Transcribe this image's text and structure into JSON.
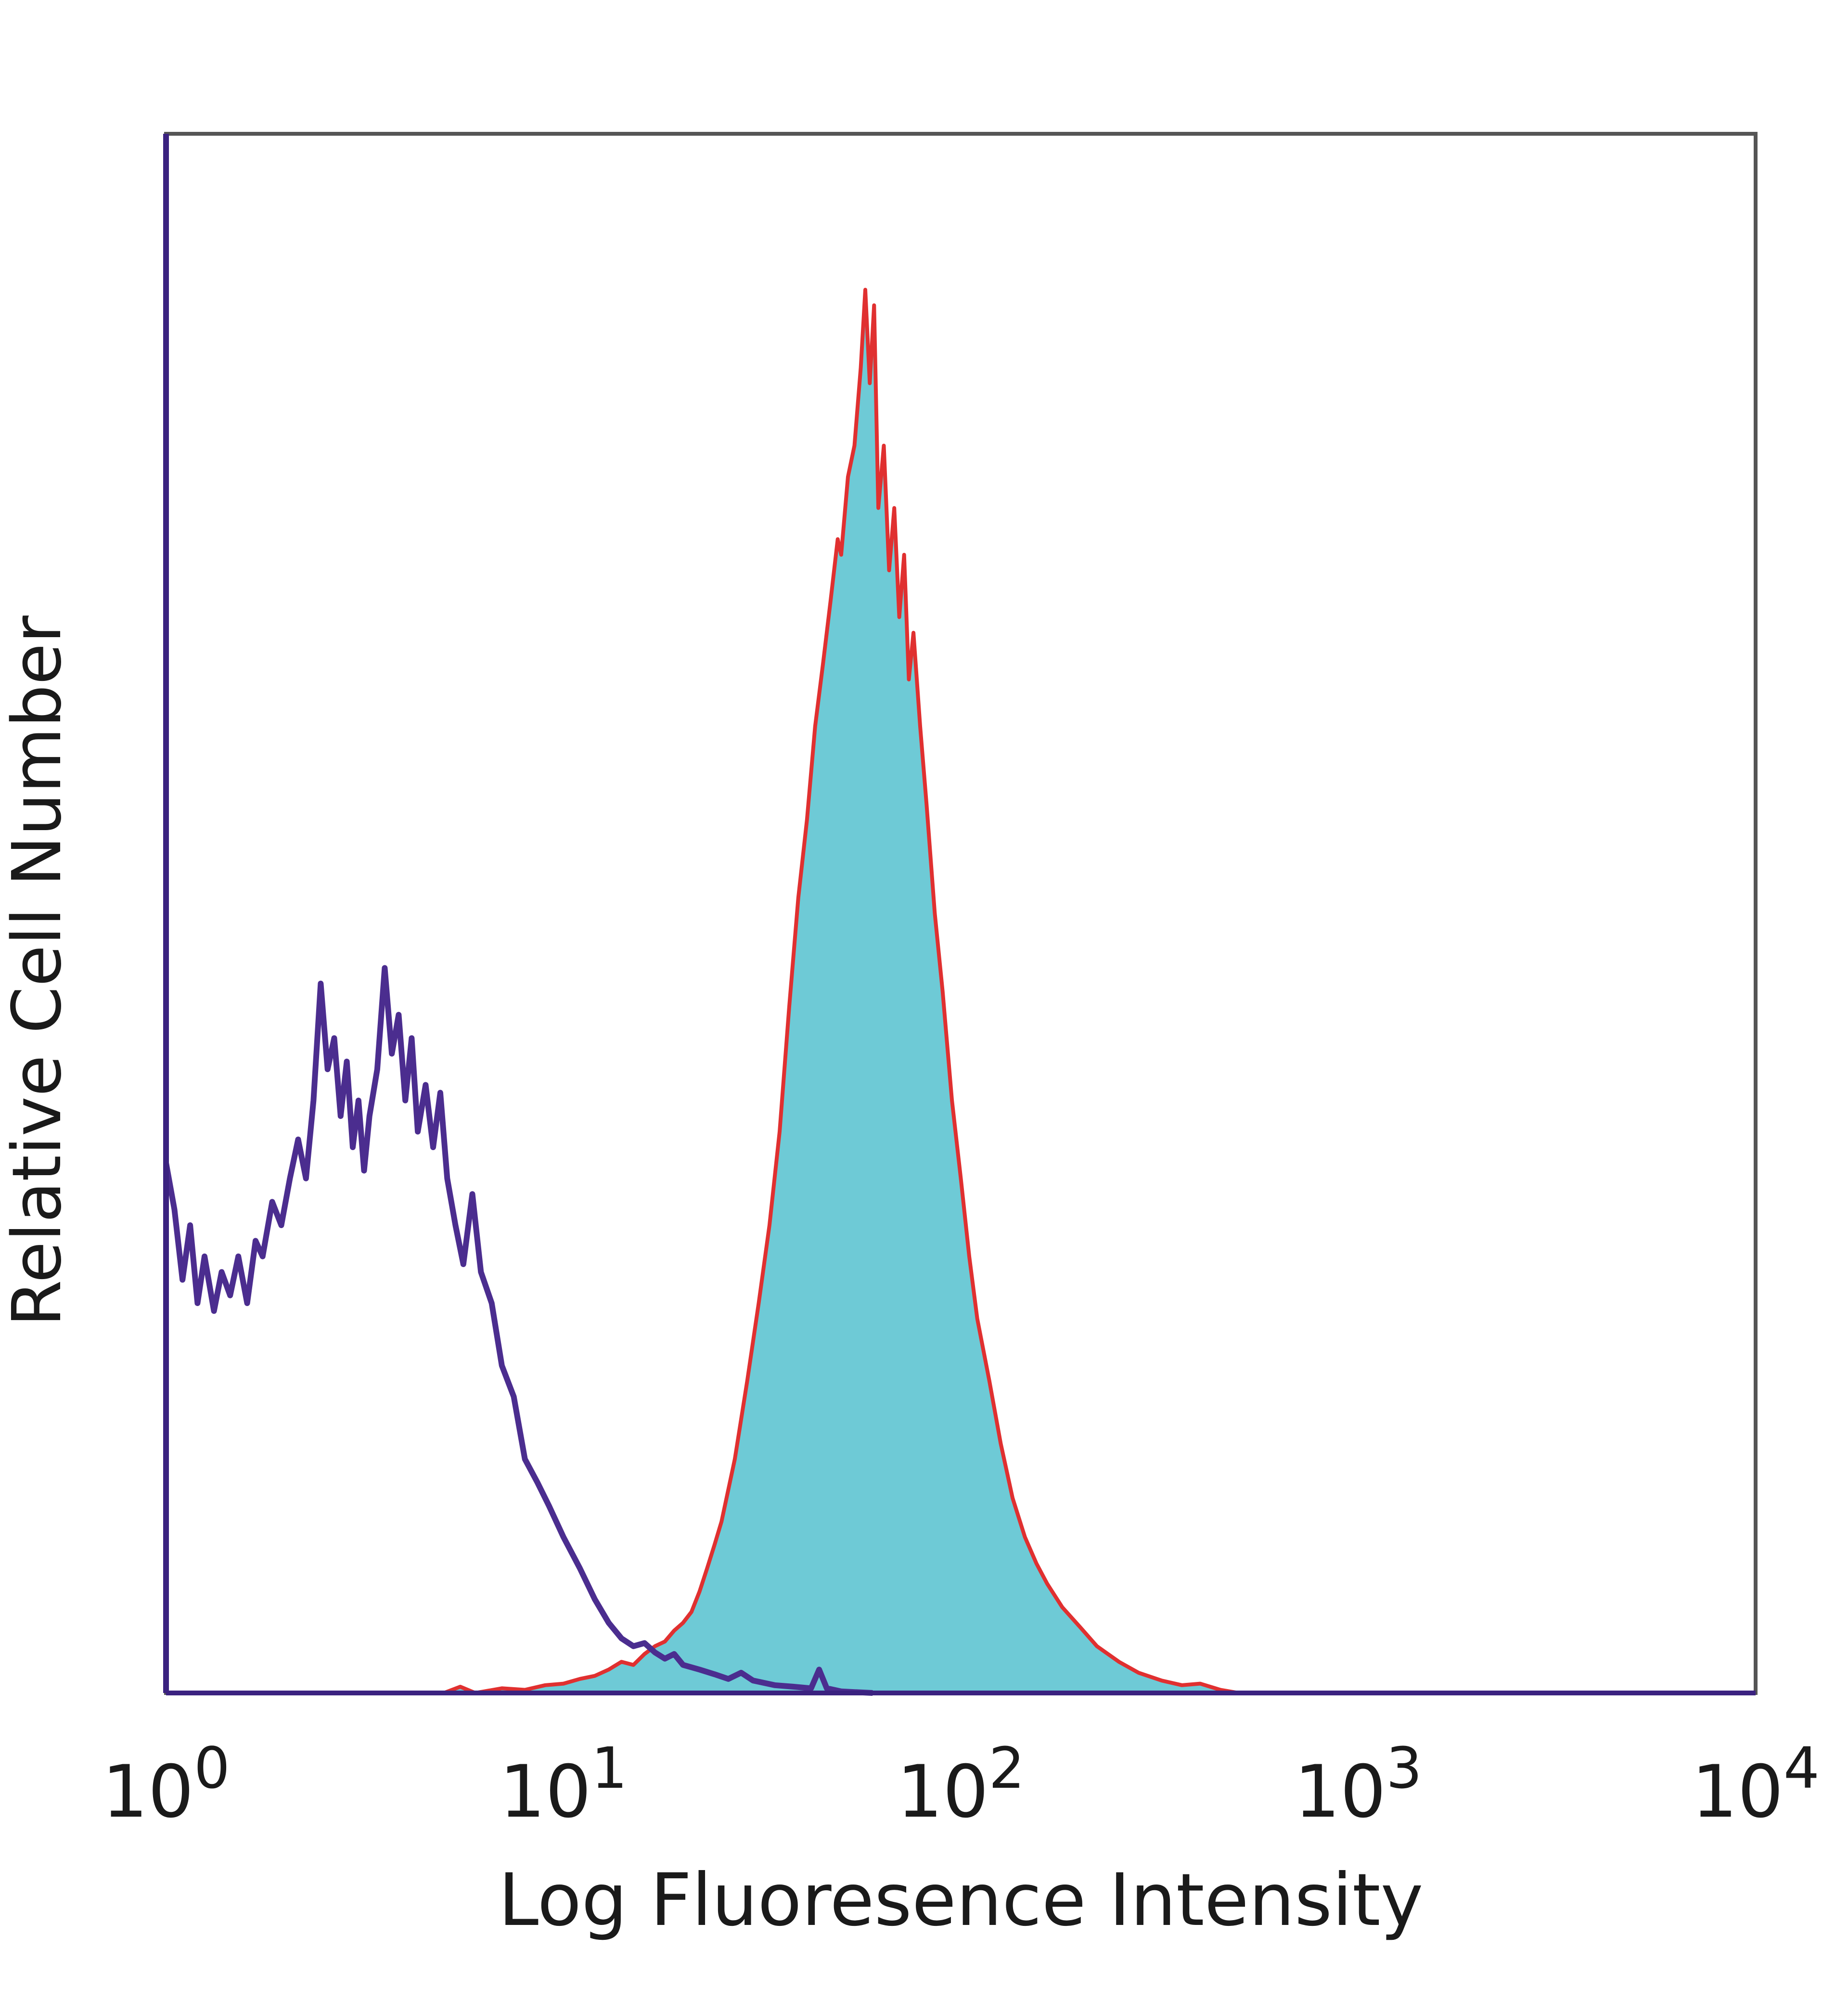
{
  "chart_data": {
    "type": "area",
    "title": "",
    "xlabel": "Log Fluoresence Intensity",
    "ylabel": "Relative Cell Number",
    "x_scale": "log",
    "xlim": [
      1,
      10000
    ],
    "ylim": [
      0,
      100
    ],
    "grid": false,
    "legend": "none",
    "x_ticks": [
      {
        "value": 1,
        "base": "10",
        "exp": "0"
      },
      {
        "value": 10,
        "base": "10",
        "exp": "1"
      },
      {
        "value": 100,
        "base": "10",
        "exp": "2"
      },
      {
        "value": 1000,
        "base": "10",
        "exp": "3"
      },
      {
        "value": 10000,
        "base": "10",
        "exp": "4"
      }
    ],
    "colors": {
      "frame": "#555555",
      "control_line": "#4b2d8f",
      "stained_fill": "#6ecad6",
      "stained_line": "#e03030",
      "left_edge": "#3b2280"
    },
    "series": [
      {
        "role": "control",
        "style": "line",
        "points": [
          [
            1.0,
            34
          ],
          [
            1.05,
            31
          ],
          [
            1.1,
            26.5
          ],
          [
            1.15,
            30
          ],
          [
            1.2,
            25
          ],
          [
            1.25,
            28
          ],
          [
            1.32,
            24.5
          ],
          [
            1.38,
            27
          ],
          [
            1.45,
            25.5
          ],
          [
            1.52,
            28
          ],
          [
            1.6,
            25
          ],
          [
            1.68,
            29
          ],
          [
            1.75,
            28
          ],
          [
            1.85,
            31.5
          ],
          [
            1.95,
            30
          ],
          [
            2.05,
            33
          ],
          [
            2.15,
            35.5
          ],
          [
            2.25,
            33
          ],
          [
            2.35,
            38
          ],
          [
            2.45,
            45.5
          ],
          [
            2.55,
            40
          ],
          [
            2.65,
            42
          ],
          [
            2.75,
            37
          ],
          [
            2.85,
            40.5
          ],
          [
            2.95,
            35
          ],
          [
            3.05,
            38
          ],
          [
            3.15,
            33.5
          ],
          [
            3.25,
            37
          ],
          [
            3.4,
            40
          ],
          [
            3.55,
            46.5
          ],
          [
            3.7,
            41
          ],
          [
            3.85,
            43.5
          ],
          [
            4.0,
            38
          ],
          [
            4.15,
            42
          ],
          [
            4.3,
            36
          ],
          [
            4.5,
            39
          ],
          [
            4.7,
            35
          ],
          [
            4.9,
            38.5
          ],
          [
            5.1,
            33
          ],
          [
            5.35,
            30
          ],
          [
            5.6,
            27.5
          ],
          [
            5.9,
            32
          ],
          [
            6.2,
            27
          ],
          [
            6.6,
            25
          ],
          [
            7.0,
            21
          ],
          [
            7.5,
            19
          ],
          [
            8.0,
            15
          ],
          [
            8.6,
            13.5
          ],
          [
            9.2,
            12
          ],
          [
            10.0,
            10
          ],
          [
            11.0,
            8
          ],
          [
            12.0,
            6
          ],
          [
            13.0,
            4.5
          ],
          [
            14.0,
            3.5
          ],
          [
            15.0,
            3
          ],
          [
            16.0,
            3.2
          ],
          [
            17.0,
            2.6
          ],
          [
            18.0,
            2.2
          ],
          [
            19.0,
            2.5
          ],
          [
            20.0,
            1.8
          ],
          [
            22.0,
            1.5
          ],
          [
            24.0,
            1.2
          ],
          [
            26.0,
            0.9
          ],
          [
            28.0,
            1.3
          ],
          [
            30.0,
            0.8
          ],
          [
            34.0,
            0.5
          ],
          [
            38.0,
            0.4
          ],
          [
            42.0,
            0.3
          ],
          [
            44.0,
            1.5
          ],
          [
            46.0,
            0.3
          ],
          [
            50.0,
            0.1
          ],
          [
            60.0,
            0
          ]
        ]
      },
      {
        "role": "stained",
        "style": "filled",
        "points": [
          [
            1.0,
            0
          ],
          [
            5.0,
            0
          ],
          [
            5.5,
            0.4
          ],
          [
            6.0,
            0
          ],
          [
            7.0,
            0.3
          ],
          [
            8.0,
            0.2
          ],
          [
            9.0,
            0.5
          ],
          [
            10.0,
            0.6
          ],
          [
            11.0,
            0.9
          ],
          [
            12.0,
            1.1
          ],
          [
            13.0,
            1.5
          ],
          [
            14.0,
            2
          ],
          [
            15.0,
            1.8
          ],
          [
            16.0,
            2.5
          ],
          [
            17.0,
            3
          ],
          [
            18.0,
            3.3
          ],
          [
            19.0,
            4
          ],
          [
            20.0,
            4.5
          ],
          [
            21.0,
            5.2
          ],
          [
            22.0,
            6.5
          ],
          [
            23.0,
            8
          ],
          [
            24.0,
            9.5
          ],
          [
            25.0,
            11
          ],
          [
            27.0,
            15
          ],
          [
            29.0,
            20
          ],
          [
            31.0,
            25
          ],
          [
            33.0,
            30
          ],
          [
            35.0,
            36
          ],
          [
            37.0,
            44
          ],
          [
            39.0,
            51
          ],
          [
            41.0,
            56
          ],
          [
            43.0,
            62
          ],
          [
            45.0,
            66
          ],
          [
            47.0,
            70
          ],
          [
            49.0,
            74
          ],
          [
            50.0,
            73
          ],
          [
            52.0,
            78
          ],
          [
            54.0,
            80
          ],
          [
            56.0,
            85
          ],
          [
            57.5,
            90
          ],
          [
            59.0,
            84
          ],
          [
            60.5,
            89
          ],
          [
            62.0,
            76
          ],
          [
            64.0,
            80
          ],
          [
            66.0,
            72
          ],
          [
            68.0,
            76
          ],
          [
            70.0,
            69
          ],
          [
            72.0,
            73
          ],
          [
            74.0,
            65
          ],
          [
            76.0,
            68
          ],
          [
            79.0,
            62
          ],
          [
            82.0,
            57
          ],
          [
            86.0,
            50
          ],
          [
            90.0,
            45
          ],
          [
            95.0,
            38
          ],
          [
            100.0,
            33
          ],
          [
            105.0,
            28
          ],
          [
            110.0,
            24
          ],
          [
            118.0,
            20
          ],
          [
            126.0,
            16
          ],
          [
            135.0,
            12.5
          ],
          [
            145.0,
            10
          ],
          [
            155.0,
            8.3
          ],
          [
            165.0,
            7
          ],
          [
            180.0,
            5.5
          ],
          [
            200.0,
            4.2
          ],
          [
            220.0,
            3
          ],
          [
            250.0,
            2
          ],
          [
            280.0,
            1.3
          ],
          [
            320.0,
            0.8
          ],
          [
            360.0,
            0.5
          ],
          [
            400.0,
            0.6
          ],
          [
            450.0,
            0.2
          ],
          [
            500.0,
            0
          ]
        ]
      }
    ]
  }
}
